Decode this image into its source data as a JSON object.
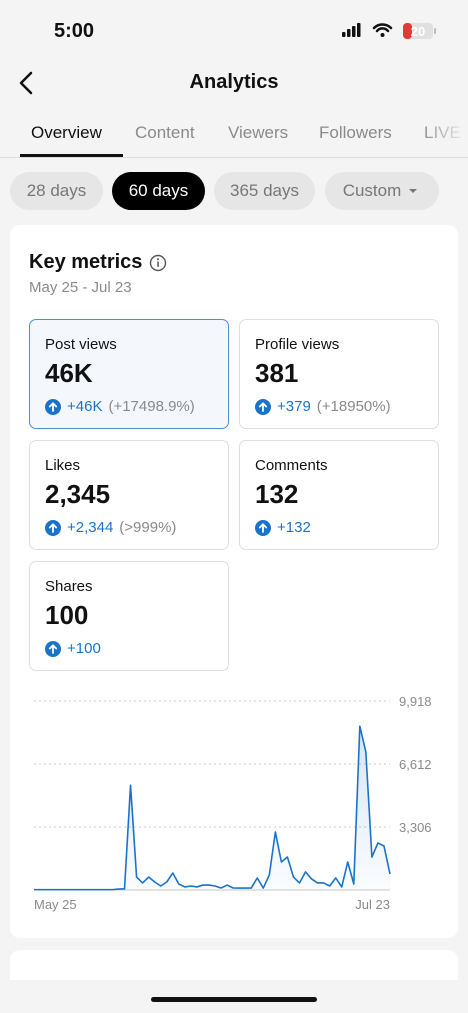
{
  "status": {
    "time": "5:00",
    "battery": "20"
  },
  "header": {
    "title": "Analytics"
  },
  "tabs": [
    "Overview",
    "Content",
    "Viewers",
    "Followers",
    "LIVE"
  ],
  "ranges": [
    "28 days",
    "60 days",
    "365 days",
    "Custom"
  ],
  "key_metrics": {
    "title": "Key metrics",
    "date_range": "May 25 - Jul 23",
    "metrics": [
      {
        "label": "Post views",
        "value": "46K",
        "change": "+46K",
        "pct": "(+17498.9%)"
      },
      {
        "label": "Profile views",
        "value": "381",
        "change": "+379",
        "pct": "(+18950%)"
      },
      {
        "label": "Likes",
        "value": "2,345",
        "change": "+2,344",
        "pct": "(>999%)"
      },
      {
        "label": "Comments",
        "value": "132",
        "change": "+132"
      },
      {
        "label": "Shares",
        "value": "100",
        "change": "+100"
      }
    ]
  },
  "chart_data": {
    "type": "line",
    "categories": [
      "May 25",
      null,
      null,
      null,
      null,
      null,
      null,
      null,
      null,
      null,
      null,
      null,
      null,
      null,
      null,
      null,
      null,
      null,
      null,
      null,
      null,
      null,
      null,
      null,
      null,
      null,
      null,
      null,
      null,
      null,
      null,
      null,
      null,
      null,
      null,
      null,
      null,
      null,
      null,
      null,
      null,
      null,
      null,
      null,
      null,
      null,
      null,
      null,
      null,
      null,
      null,
      null,
      null,
      null,
      null,
      null,
      null,
      null,
      null,
      "Jul 23"
    ],
    "series": [
      {
        "name": "Post views",
        "color": "#1a73c8",
        "values": [
          20,
          20,
          20,
          20,
          20,
          20,
          20,
          20,
          20,
          20,
          20,
          20,
          20,
          20,
          50,
          60,
          5500,
          680,
          370,
          680,
          420,
          210,
          420,
          890,
          315,
          160,
          210,
          160,
          260,
          260,
          210,
          105,
          260,
          105,
          100,
          100,
          100,
          630,
          100,
          790,
          3040,
          1470,
          1730,
          680,
          370,
          950,
          580,
          370,
          370,
          210,
          630,
          160,
          1470,
          315,
          8600,
          7240,
          1730,
          2470,
          2310,
          840
        ]
      }
    ],
    "ylim": [
      0,
      9918
    ],
    "yticks": [
      {
        "value": 3306,
        "label": "3,306"
      },
      {
        "value": 6612,
        "label": "6,612"
      },
      {
        "value": 9918,
        "label": "9,918"
      }
    ],
    "grid": true
  }
}
